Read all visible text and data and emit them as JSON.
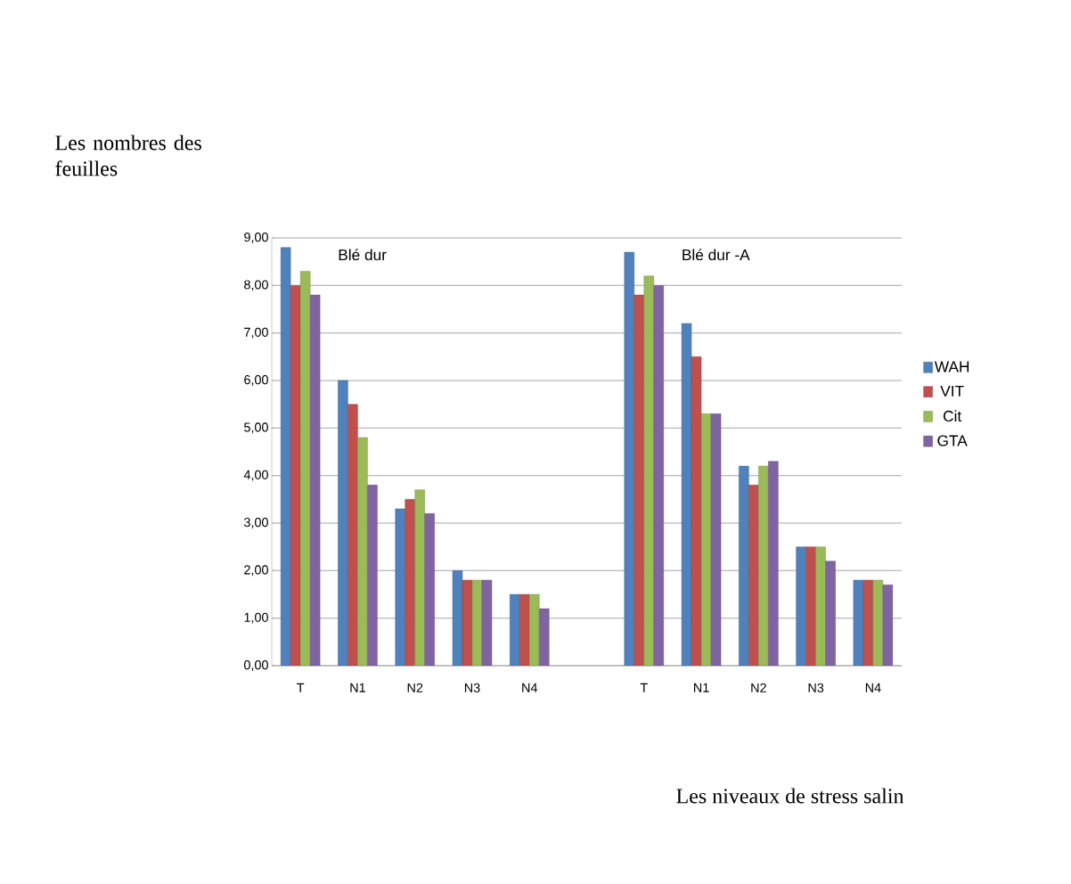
{
  "chart_data": {
    "type": "bar",
    "xlabel": "Les niveaux de stress salin",
    "ylabel": "Les nombres des feuilles",
    "annotations": [
      "Blé  dur",
      "Blé dur -A"
    ],
    "categories": [
      "T",
      "N1",
      "N2",
      "N3",
      "N4",
      null,
      "T",
      "N1",
      "N2",
      "N3",
      "N4"
    ],
    "series": [
      {
        "name": "WAH",
        "color": "#4f81bd",
        "values": [
          8.8,
          6.0,
          3.3,
          2.0,
          1.5,
          null,
          8.7,
          7.2,
          4.2,
          2.5,
          1.8
        ]
      },
      {
        "name": "VIT",
        "color": "#c0504d",
        "values": [
          8.0,
          5.5,
          3.5,
          1.8,
          1.5,
          null,
          7.8,
          6.5,
          3.8,
          2.5,
          1.8
        ]
      },
      {
        "name": "Cit",
        "color": "#9bbb59",
        "values": [
          8.3,
          4.8,
          3.7,
          1.8,
          1.5,
          null,
          8.2,
          5.3,
          4.2,
          2.5,
          1.8
        ]
      },
      {
        "name": "GTA",
        "color": "#8064a2",
        "values": [
          7.8,
          3.8,
          3.2,
          1.8,
          1.2,
          null,
          8.0,
          5.3,
          4.3,
          2.2,
          1.7
        ]
      }
    ],
    "ylim": [
      0,
      9
    ],
    "yticks": [
      {
        "value": 0,
        "label": "0,00"
      },
      {
        "value": 1,
        "label": "1,00"
      },
      {
        "value": 2,
        "label": "2,00"
      },
      {
        "value": 3,
        "label": "3,00"
      },
      {
        "value": 4,
        "label": "4,00"
      },
      {
        "value": 5,
        "label": "5,00"
      },
      {
        "value": 6,
        "label": "6,00"
      },
      {
        "value": 7,
        "label": "7,00"
      },
      {
        "value": 8,
        "label": "8,00"
      },
      {
        "value": 9,
        "label": "9,00"
      }
    ],
    "grid": "y",
    "legend": "right"
  }
}
